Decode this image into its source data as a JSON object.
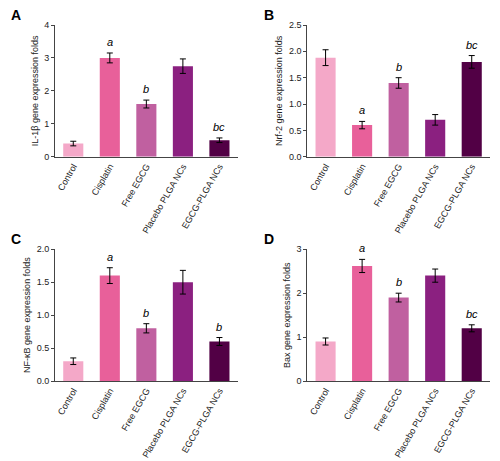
{
  "chart_data": [
    {
      "type": "bar",
      "title": "A",
      "ylabel": "IL-1β gene expression folds",
      "categories": [
        "Control",
        "Cisplatin",
        "Free EGCG",
        "Placebo PLGA NCs",
        "EGCG-PLGA NCs"
      ],
      "values": [
        0.4,
        3.0,
        1.6,
        2.75,
        0.5
      ],
      "errors": [
        0.07,
        0.15,
        0.12,
        0.22,
        0.07
      ],
      "colors": [
        "#F4A8C8",
        "#E8609A",
        "#C060A0",
        "#8B2080",
        "#520045"
      ],
      "ylim": [
        0,
        4
      ],
      "yticks": [
        0,
        1,
        2,
        3,
        4
      ],
      "grid": false,
      "annotations": [
        {
          "x": "Cisplatin",
          "text": "a"
        },
        {
          "x": "Free EGCG",
          "text": "b"
        },
        {
          "x": "EGCG-PLGA NCs",
          "text": "bc"
        }
      ]
    },
    {
      "type": "bar",
      "title": "B",
      "ylabel": "Nrf-2 gene expression folds",
      "categories": [
        "Control",
        "Cisplatin",
        "Free EGCG",
        "Placebo PLGA NCs",
        "EGCG-PLGA NCs"
      ],
      "values": [
        1.88,
        0.6,
        1.4,
        0.7,
        1.8
      ],
      "errors": [
        0.15,
        0.07,
        0.1,
        0.1,
        0.12
      ],
      "colors": [
        "#F4A8C8",
        "#E8609A",
        "#C060A0",
        "#8B2080",
        "#520045"
      ],
      "ylim": [
        0,
        2.5
      ],
      "yticks": [
        {
          "value": 0,
          "label": "0.0"
        },
        0.5,
        {
          "value": 1,
          "label": "1.0"
        },
        1.5,
        {
          "value": 2,
          "label": "2.0"
        },
        2.5
      ],
      "grid": false,
      "annotations": [
        {
          "x": "Cisplatin",
          "text": "a"
        },
        {
          "x": "Free EGCG",
          "text": "b"
        },
        {
          "x": "EGCG-PLGA NCs",
          "text": "bc"
        }
      ]
    },
    {
      "type": "bar",
      "title": "C",
      "ylabel": "NF-κB gene expression folds",
      "categories": [
        "Control",
        "Cisplatin",
        "Free EGCG",
        "Placebo PLGA NCs",
        "EGCG-PLGA NCs"
      ],
      "values": [
        0.3,
        1.6,
        0.8,
        1.5,
        0.6
      ],
      "errors": [
        0.05,
        0.12,
        0.07,
        0.18,
        0.06
      ],
      "colors": [
        "#F4A8C8",
        "#E8609A",
        "#C060A0",
        "#8B2080",
        "#520045"
      ],
      "ylim": [
        0,
        2.0
      ],
      "yticks": [
        {
          "value": 0,
          "label": "0.0"
        },
        0.5,
        {
          "value": 1,
          "label": "1.0"
        },
        1.5,
        {
          "value": 2,
          "label": "2.0"
        }
      ],
      "grid": false,
      "annotations": [
        {
          "x": "Cisplatin",
          "text": "a"
        },
        {
          "x": "Free EGCG",
          "text": "b"
        },
        {
          "x": "EGCG-PLGA NCs",
          "text": "b"
        }
      ]
    },
    {
      "type": "bar",
      "title": "D",
      "ylabel": "Bax gene expression folds",
      "categories": [
        "Control",
        "Cisplatin",
        "Free EGCG",
        "Placebo PLGA NCs",
        "EGCG-PLGA NCs"
      ],
      "values": [
        0.9,
        2.62,
        1.9,
        2.4,
        1.2
      ],
      "errors": [
        0.08,
        0.15,
        0.1,
        0.15,
        0.08
      ],
      "colors": [
        "#F4A8C8",
        "#E8609A",
        "#C060A0",
        "#8B2080",
        "#520045"
      ],
      "ylim": [
        0,
        3.0
      ],
      "yticks": [
        0,
        1,
        2,
        3
      ],
      "grid": false,
      "annotations": [
        {
          "x": "Cisplatin",
          "text": "a"
        },
        {
          "x": "Free EGCG",
          "text": "b"
        },
        {
          "x": "EGCG-PLGA NCs",
          "text": "bc"
        }
      ]
    }
  ]
}
